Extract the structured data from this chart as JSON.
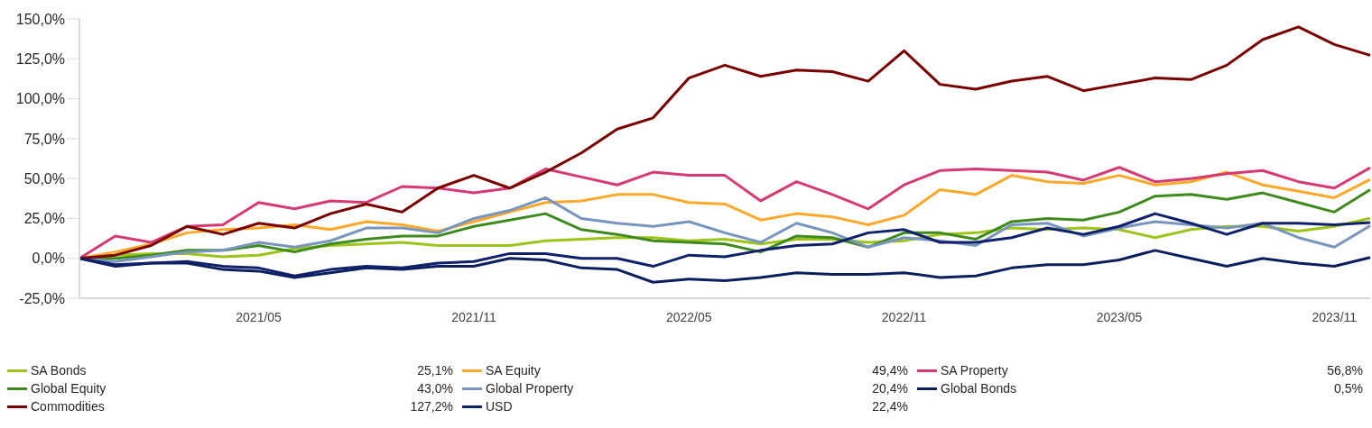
{
  "chart_data": {
    "type": "line",
    "categories": [
      null,
      null,
      null,
      null,
      null,
      "2021/05",
      null,
      null,
      null,
      null,
      null,
      "2021/11",
      null,
      null,
      null,
      null,
      null,
      "2022/05",
      null,
      null,
      null,
      null,
      null,
      "2022/11",
      null,
      null,
      null,
      null,
      null,
      "2023/05",
      null,
      null,
      null,
      null,
      null,
      "2023/11",
      null
    ],
    "series": [
      {
        "name": "SA Bonds",
        "color": "#9dc41a",
        "values": [
          0,
          2,
          3,
          3,
          1,
          2,
          6,
          8,
          9,
          10,
          8,
          8,
          8,
          11,
          12,
          13,
          13,
          11,
          12,
          9,
          12,
          12,
          10,
          11,
          15,
          16,
          19,
          18,
          19,
          18,
          13,
          18,
          20,
          20,
          17,
          20,
          25.1
        ]
      },
      {
        "name": "SA Equity",
        "color": "#fca92b",
        "values": [
          0,
          4,
          9,
          16,
          18,
          19,
          21,
          18,
          23,
          21,
          17,
          23,
          29,
          35,
          36,
          40,
          40,
          35,
          34,
          24,
          28,
          26,
          21,
          27,
          43,
          40,
          52,
          48,
          47,
          52,
          46,
          48,
          54,
          46,
          42,
          38,
          49.4
        ]
      },
      {
        "name": "SA Property",
        "color": "#d63a72",
        "values": [
          0,
          14,
          10,
          20,
          21,
          35,
          31,
          36,
          35,
          45,
          44,
          41,
          44,
          56,
          51,
          46,
          54,
          52,
          52,
          36,
          48,
          40,
          31,
          46,
          55,
          56,
          55,
          54,
          49,
          57,
          48,
          50,
          53,
          55,
          48,
          44,
          56.8
        ]
      },
      {
        "name": "Global Equity",
        "color": "#3e8a1e",
        "values": [
          0,
          0,
          2,
          5,
          5,
          8,
          4,
          9,
          12,
          14,
          14,
          20,
          24,
          28,
          18,
          15,
          11,
          10,
          9,
          4,
          14,
          13,
          7,
          16,
          16,
          12,
          23,
          25,
          24,
          29,
          39,
          40,
          37,
          41,
          35,
          29,
          43.0
        ]
      },
      {
        "name": "Global Property",
        "color": "#7895bd",
        "values": [
          0,
          -2,
          1,
          4,
          5,
          10,
          7,
          11,
          19,
          19,
          16,
          25,
          30,
          38,
          25,
          22,
          20,
          23,
          16,
          10,
          22,
          16,
          7,
          13,
          11,
          8,
          21,
          22,
          14,
          19,
          23,
          21,
          19,
          22,
          13,
          7,
          20.4
        ]
      },
      {
        "name": "Global Bonds",
        "color": "#0b1f5e",
        "values": [
          0,
          -5,
          -3,
          -3,
          -7,
          -8,
          -12,
          -9,
          -6,
          -7,
          -5,
          -5,
          0,
          -1,
          -6,
          -7,
          -15,
          -13,
          -14,
          -12,
          -9,
          -10,
          -10,
          -9,
          -12,
          -11,
          -6,
          -4,
          -4,
          -1,
          5,
          0,
          -5,
          0,
          -3,
          -5,
          0.5
        ]
      },
      {
        "name": "Commodities",
        "color": "#7a0000",
        "values": [
          0,
          2,
          8,
          20,
          15,
          22,
          19,
          28,
          34,
          29,
          44,
          52,
          44,
          54,
          66,
          81,
          88,
          113,
          121,
          114,
          118,
          117,
          111,
          130,
          109,
          106,
          111,
          114,
          105,
          109,
          113,
          112,
          121,
          137,
          145,
          134,
          127.2
        ]
      },
      {
        "name": "USD",
        "color": "#10206a",
        "values": [
          0,
          -4,
          -3,
          -2,
          -5,
          -6,
          -11,
          -7,
          -5,
          -6,
          -3,
          -2,
          3,
          3,
          0,
          0,
          -5,
          2,
          1,
          5,
          8,
          9,
          16,
          18,
          10,
          10,
          13,
          19,
          15,
          20,
          28,
          22,
          15,
          22,
          22,
          21,
          22.4
        ]
      }
    ],
    "annotations": [
      "25,1%",
      "49,4%",
      "56,8%",
      "43,0%",
      "20,4%",
      "0,5%",
      "127,2%",
      "22,4%"
    ],
    "ylim": [
      -25,
      150
    ],
    "yticks": [
      {
        "value": -25,
        "label": "-25,0%"
      },
      {
        "value": 0,
        "label": "0,0%"
      },
      {
        "value": 25,
        "label": "25,0%"
      },
      {
        "value": 50,
        "label": "50,0%"
      },
      {
        "value": 75,
        "label": "75,0%"
      },
      {
        "value": 100,
        "label": "100,0%"
      },
      {
        "value": 125,
        "label": "125,0%"
      },
      {
        "value": 150,
        "label": "150,0%"
      }
    ],
    "grid": false,
    "legend": "bottom"
  }
}
